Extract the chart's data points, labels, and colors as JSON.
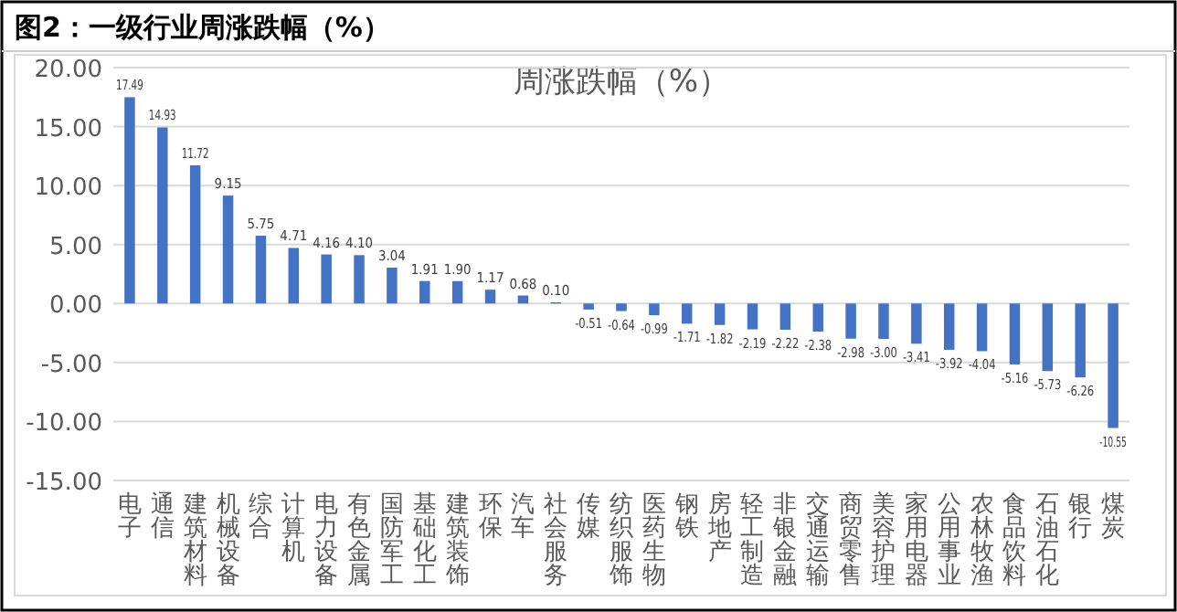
{
  "chart_data": {
    "type": "bar",
    "title": "图2：一级行业周涨跌幅（%）",
    "subtitle": "周涨跌幅（%）",
    "categories": [
      "电子",
      "通信",
      "建筑材料",
      "机械设备",
      "综合",
      "计算机",
      "电力设备",
      "有色金属",
      "国防军工",
      "基础化工",
      "建筑装饰",
      "环保",
      "汽车",
      "社会服务",
      "传媒",
      "纺织服饰",
      "医药生物",
      "钢铁",
      "房地产",
      "轻工制造",
      "非银金融",
      "交通运输",
      "商贸零售",
      "美容护理",
      "家用电器",
      "公用事业",
      "农林牧渔",
      "食品饮料",
      "石油石化",
      "银行",
      "煤炭"
    ],
    "values": [
      17.49,
      14.93,
      11.72,
      9.15,
      5.75,
      4.71,
      4.16,
      4.1,
      3.04,
      1.91,
      1.9,
      1.17,
      0.68,
      0.1,
      -0.51,
      -0.64,
      -0.99,
      -1.71,
      -1.82,
      -2.19,
      -2.22,
      -2.38,
      -2.98,
      -3.0,
      -3.41,
      -3.92,
      -4.04,
      -5.16,
      -5.73,
      -6.26,
      -10.55
    ],
    "color": "#4472c4",
    "ylim": [
      -15,
      20
    ],
    "yticks": [
      {
        "value": -15,
        "label": "-15.00"
      },
      {
        "value": -10,
        "label": "-10.00"
      },
      {
        "value": -5,
        "label": "-5.00"
      },
      {
        "value": 0,
        "label": "0.00"
      },
      {
        "value": 5,
        "label": "5.00"
      },
      {
        "value": 10,
        "label": "10.00"
      },
      {
        "value": 15,
        "label": "15.00"
      },
      {
        "value": 20,
        "label": "20.00"
      }
    ],
    "value_labels": [
      "17.49",
      "14.93",
      "11.72",
      "9.15",
      "5.75",
      "4.71",
      "4.16",
      "4.10",
      "3.04",
      "1.91",
      "1.90",
      "1.17",
      "0.68",
      "0.10",
      "-0.51",
      "-0.64",
      "-0.99",
      "-1.71",
      "-1.82",
      "-2.19",
      "-2.22",
      "-2.38",
      "-2.98",
      "-3.00",
      "-3.41",
      "-3.92",
      "-4.04",
      "-5.16",
      "-5.73",
      "-6.26",
      "-10.55"
    ],
    "grid": "y"
  }
}
